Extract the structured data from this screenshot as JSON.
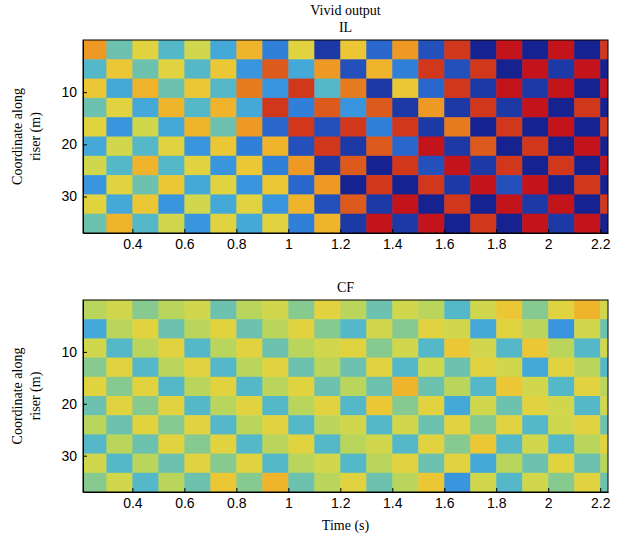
{
  "title": "Vivid output",
  "chart_data": [
    {
      "type": "heatmap",
      "title": "IL",
      "ylabel": [
        "Coordinate along",
        "riser (m)"
      ],
      "xlim": [
        0.21,
        2.23
      ],
      "ylim": [
        0,
        37
      ],
      "xticks": [
        0.4,
        0.6,
        0.8,
        1,
        1.2,
        1.4,
        1.6,
        1.8,
        2,
        2.2
      ],
      "yticks": [
        10,
        20,
        30
      ],
      "zlim": [
        -1,
        1
      ],
      "x": [
        0.25,
        0.35,
        0.45,
        0.55,
        0.65,
        0.75,
        0.85,
        0.95,
        1.05,
        1.15,
        1.25,
        1.35,
        1.45,
        1.55,
        1.65,
        1.75,
        1.85,
        1.95,
        2.05,
        2.15,
        2.25
      ],
      "y": [
        1.85,
        5.55,
        9.25,
        12.95,
        16.65,
        20.35,
        24.05,
        27.75,
        31.45,
        35.15
      ],
      "z": [
        [
          0.6,
          -0.2,
          0.3,
          -0.3,
          0.2,
          -0.4,
          0.5,
          -0.6,
          0.3,
          -0.9,
          0.4,
          -0.7,
          0.6,
          -0.8,
          0.9,
          -1,
          1,
          -1,
          1,
          -1,
          0.9
        ],
        [
          -0.3,
          0.4,
          -0.2,
          0.3,
          -0.3,
          0.4,
          -0.5,
          0.8,
          -0.4,
          0.6,
          -0.8,
          0.5,
          -0.6,
          0.9,
          -0.8,
          0.9,
          -1,
          1,
          -0.9,
          1,
          -1
        ],
        [
          0.4,
          -0.4,
          0.5,
          -0.2,
          0.4,
          -0.3,
          0.7,
          -0.5,
          0.9,
          -0.3,
          0.7,
          -0.9,
          0.4,
          -0.7,
          0.9,
          -0.9,
          1,
          -0.9,
          1,
          -1,
          1
        ],
        [
          -0.2,
          0.3,
          -0.4,
          0.5,
          -0.3,
          0.5,
          -0.4,
          0.9,
          -0.6,
          0.8,
          -0.5,
          0.8,
          -0.9,
          0.6,
          -0.9,
          0.9,
          -0.9,
          1,
          -1,
          0.9,
          -1
        ],
        [
          0.3,
          -0.5,
          0.2,
          -0.4,
          0.5,
          -0.2,
          0.6,
          -0.7,
          0.9,
          -0.8,
          0.9,
          -0.6,
          0.9,
          -0.9,
          0.7,
          -1,
          0.9,
          -1,
          1,
          -1,
          0.9
        ],
        [
          -0.4,
          0.2,
          -0.3,
          0.3,
          -0.5,
          0.4,
          -0.6,
          0.5,
          -0.8,
          0.9,
          -0.9,
          0.8,
          -0.7,
          1,
          -0.9,
          0.8,
          -1,
          0.9,
          -1,
          1,
          -1
        ],
        [
          0.2,
          -0.3,
          0.5,
          -0.3,
          0.3,
          -0.5,
          0.4,
          -0.6,
          0.6,
          -0.9,
          0.8,
          -1,
          0.9,
          -0.8,
          1,
          -0.9,
          0.9,
          -1,
          0.9,
          -1,
          1
        ],
        [
          -0.5,
          0.3,
          -0.2,
          0.4,
          -0.4,
          0.3,
          -0.5,
          0.4,
          -0.7,
          0.6,
          -1,
          0.9,
          -1,
          0.9,
          -0.9,
          1,
          -0.8,
          1,
          -1,
          0.9,
          -1
        ],
        [
          0.3,
          -0.4,
          0.4,
          -0.5,
          0.2,
          -0.4,
          0.3,
          -0.5,
          0.5,
          -0.8,
          0.8,
          -0.9,
          1,
          -1,
          0.9,
          -1,
          1,
          -0.9,
          1,
          -1,
          0.9
        ],
        [
          -0.2,
          0.5,
          -0.3,
          0.2,
          -0.5,
          0.3,
          -0.4,
          0.3,
          -0.6,
          0.5,
          -0.9,
          1,
          -0.9,
          1,
          -1,
          0.9,
          -1,
          1,
          -0.9,
          1,
          -1
        ]
      ]
    },
    {
      "type": "heatmap",
      "title": "CF",
      "xlabel": "Time (s)",
      "ylabel": [
        "Coordinate along",
        "riser (m)"
      ],
      "xlim": [
        0.21,
        2.23
      ],
      "ylim": [
        0,
        37
      ],
      "xticks": [
        0.4,
        0.6,
        0.8,
        1,
        1.2,
        1.4,
        1.6,
        1.8,
        2,
        2.2
      ],
      "yticks": [
        10,
        20,
        30
      ],
      "zlim": [
        -1,
        1
      ],
      "x": [
        0.25,
        0.35,
        0.45,
        0.55,
        0.65,
        0.75,
        0.85,
        0.95,
        1.05,
        1.15,
        1.25,
        1.35,
        1.45,
        1.55,
        1.65,
        1.75,
        1.85,
        1.95,
        2.05,
        2.15,
        2.25
      ],
      "y": [
        1.85,
        5.55,
        9.25,
        12.95,
        16.65,
        20.35,
        24.05,
        27.75,
        31.45,
        35.15
      ],
      "z": [
        [
          0.1,
          0.2,
          -0.1,
          0.1,
          0.2,
          -0.2,
          0.1,
          0.2,
          -0.1,
          0.3,
          0.1,
          -0.2,
          0.2,
          0.1,
          -0.3,
          0.2,
          0.4,
          -0.1,
          0.3,
          0.5,
          0.2
        ],
        [
          -0.4,
          0.1,
          0.3,
          -0.2,
          0.1,
          0.3,
          -0.2,
          0.1,
          0.3,
          -0.1,
          -0.3,
          0.2,
          -0.1,
          0.3,
          0.2,
          -0.4,
          0.3,
          0.1,
          -0.5,
          0.2,
          -0.2
        ],
        [
          0.2,
          -0.3,
          0.1,
          0.3,
          -0.3,
          0.1,
          0.3,
          -0.2,
          0.1,
          0.2,
          0.3,
          -0.1,
          0.2,
          -0.3,
          0.4,
          0.2,
          -0.3,
          0.4,
          0.1,
          -0.3,
          0.2
        ],
        [
          -0.1,
          0.3,
          -0.3,
          0.1,
          0.3,
          -0.3,
          0.1,
          0.3,
          -0.2,
          0.1,
          -0.2,
          0.3,
          -0.3,
          0.2,
          -0.2,
          0.3,
          0.2,
          -0.4,
          0.3,
          0.1,
          -0.3
        ],
        [
          0.3,
          -0.1,
          0.3,
          -0.3,
          0.1,
          0.3,
          -0.3,
          0.1,
          0.3,
          -0.2,
          0.1,
          -0.2,
          0.5,
          -0.2,
          0.1,
          -0.3,
          0.4,
          0.2,
          -0.3,
          0.3,
          0.1
        ],
        [
          -0.2,
          0.3,
          -0.1,
          0.3,
          -0.3,
          0.1,
          0.3,
          -0.3,
          0.1,
          0.3,
          -0.3,
          0.4,
          -0.1,
          0.3,
          -0.4,
          0.2,
          -0.2,
          0.3,
          0.2,
          -0.3,
          0.2
        ],
        [
          0.1,
          -0.2,
          0.3,
          -0.1,
          0.3,
          -0.3,
          0.1,
          0.3,
          -0.3,
          0.1,
          0.2,
          -0.3,
          0.2,
          -0.2,
          0.3,
          -0.1,
          0.3,
          -0.3,
          0.2,
          0.3,
          -0.2
        ],
        [
          -0.3,
          0.1,
          -0.2,
          0.3,
          -0.1,
          0.3,
          -0.3,
          0.1,
          0.3,
          -0.3,
          0.1,
          0.2,
          -0.3,
          0.3,
          -0.1,
          0.4,
          -0.3,
          0.2,
          -0.3,
          0.1,
          0.3
        ],
        [
          0.2,
          -0.3,
          0.1,
          -0.2,
          0.3,
          -0.1,
          0.3,
          -0.3,
          0.1,
          0.2,
          -0.3,
          0.1,
          0.3,
          -0.2,
          0.3,
          -0.4,
          0.1,
          -0.2,
          0.3,
          -0.2,
          0.1
        ],
        [
          -0.1,
          0.2,
          -0.3,
          0.1,
          -0.2,
          0.4,
          -0.1,
          0.5,
          -0.2,
          0.1,
          0.3,
          -0.2,
          0.1,
          0.4,
          -0.5,
          0.2,
          -0.3,
          0.2,
          -0.1,
          0.3,
          -0.2
        ]
      ]
    }
  ]
}
